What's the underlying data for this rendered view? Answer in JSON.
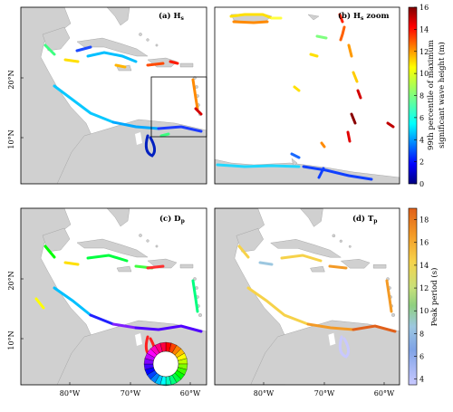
{
  "chart_data": [
    {
      "type": "heatmap",
      "panel": "a",
      "title": "(a) H",
      "title_sub": "s",
      "lon_ticks": [
        "80°W",
        "70°W",
        "60°W"
      ],
      "lat_ticks": [
        "20°N",
        "10°N"
      ],
      "colorbar": {
        "label_line1": "99th percentile of maximum",
        "label_line2": "significant wave height (m)",
        "ticks": [
          "0",
          "2",
          "4",
          "6",
          "8",
          "10",
          "12",
          "14",
          "16"
        ],
        "range": [
          0,
          16
        ],
        "colormap": "jet"
      }
    },
    {
      "type": "heatmap",
      "panel": "b",
      "title": "(b) H",
      "title_sub": "s",
      "title_suffix": " zoom"
    },
    {
      "type": "heatmap",
      "panel": "c",
      "title": "(c) D",
      "title_sub": "p",
      "lon_ticks": [
        "80°W",
        "70°W",
        "60°W"
      ],
      "lat_ticks": [
        "20°N",
        "10°N"
      ],
      "colormap": "hsv-circular"
    },
    {
      "type": "heatmap",
      "panel": "d",
      "title": "(d) T",
      "title_sub": "p",
      "lon_ticks": [
        "80°W",
        "70°W",
        "60°W"
      ],
      "colorbar": {
        "label": "Peak period (s)",
        "ticks": [
          "4",
          "6",
          "8",
          "10",
          "12",
          "14",
          "16",
          "18"
        ],
        "range": [
          3.5,
          19
        ],
        "colormap": "custom-blue-green-orange"
      }
    }
  ],
  "colors": {
    "land": "#d0d0d0",
    "land_border": "#9a9a9a",
    "sea": "#ffffff"
  }
}
